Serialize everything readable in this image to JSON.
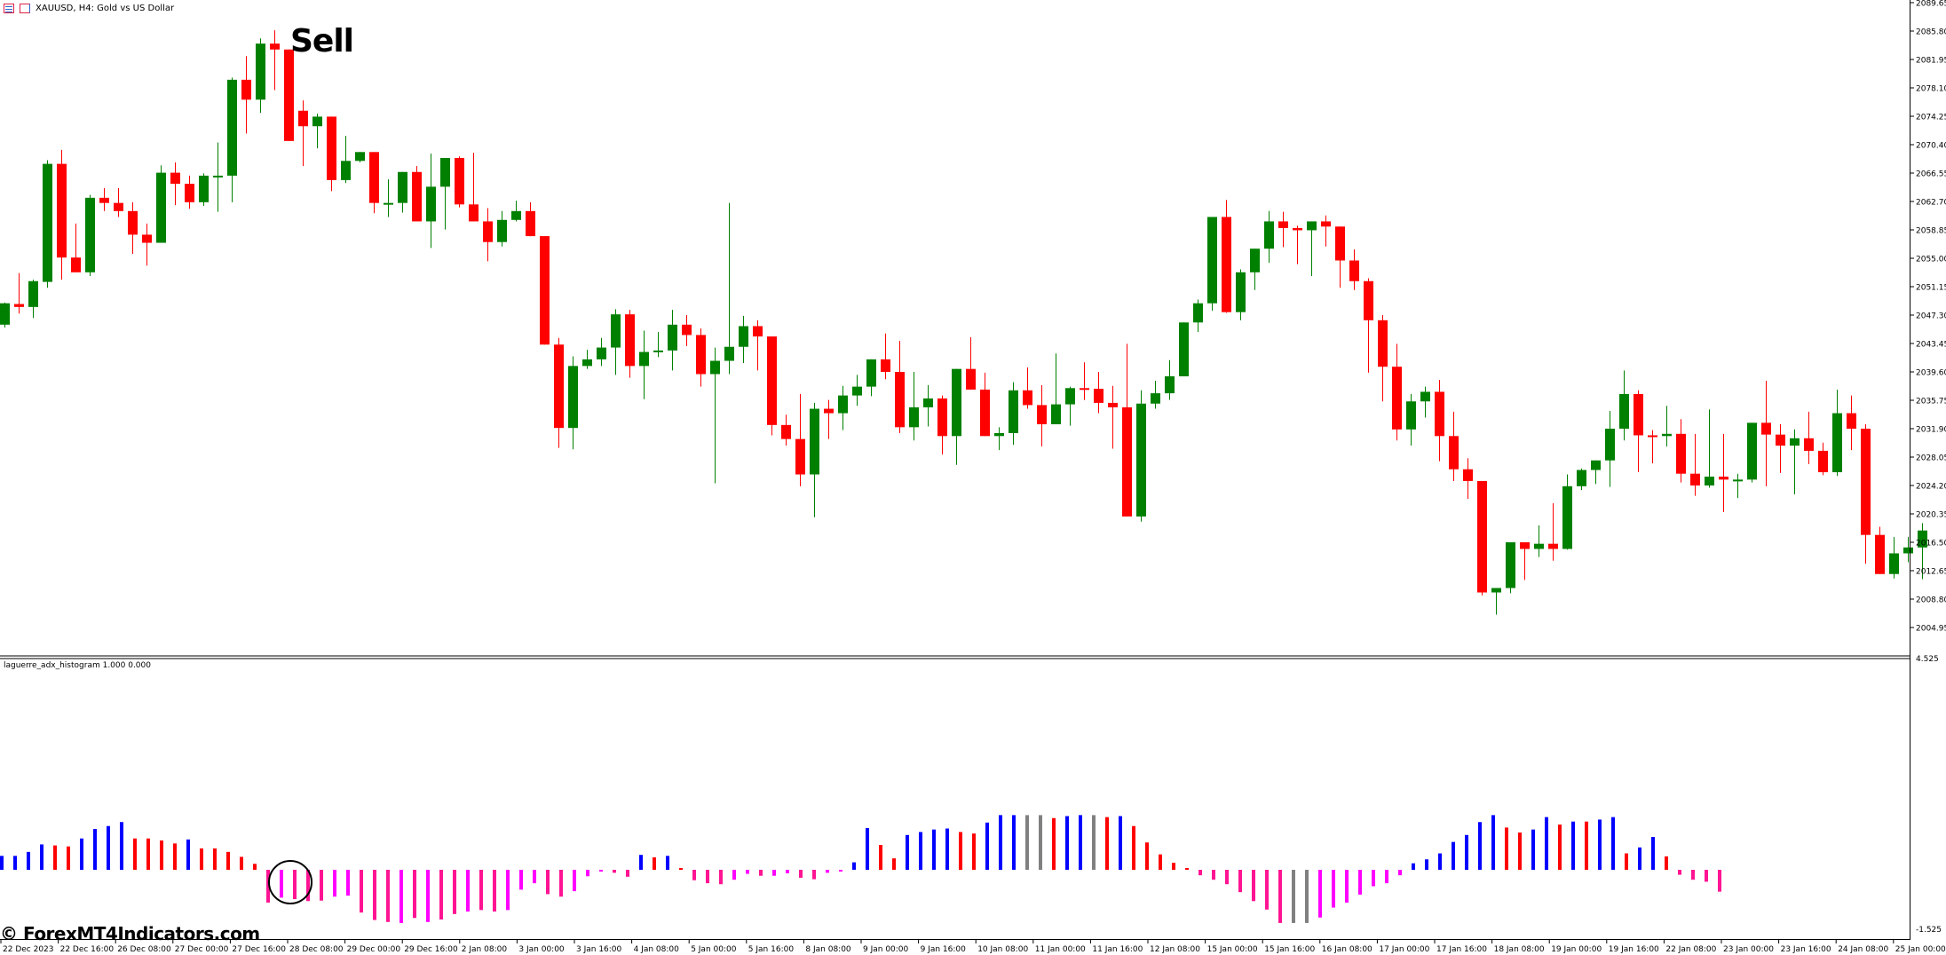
{
  "window": {
    "title": "XAUUSD, H4:  Gold vs US Dollar",
    "annotation": "Sell",
    "watermark": "© ForexMT4Indicators.com"
  },
  "indicator": {
    "label": "laguerre_adx_histogram 1.000 0.000",
    "ymax_label": "4.525",
    "ymin_label": "-1.525"
  },
  "colors": {
    "bull": "#008000",
    "bear": "#ff0000",
    "hist_blue": "#0000ff",
    "hist_red": "#ff0000",
    "hist_pink": "#ff1493",
    "hist_magenta": "#ff00ff",
    "hist_gray": "#808080"
  },
  "chart_data": [
    {
      "type": "candlestick",
      "title": "XAUUSD, H4: Gold vs US Dollar",
      "xlabel": "",
      "ylabel": "Price",
      "ylim": [
        2001.0,
        2090.0
      ],
      "y_ticks": [
        "2089.65",
        "2085.80",
        "2081.95",
        "2078.10",
        "2074.25",
        "2070.40",
        "2066.55",
        "2062.70",
        "2058.85",
        "2055.00",
        "2051.15",
        "2047.30",
        "2043.45",
        "2039.60",
        "2035.75",
        "2031.90",
        "2028.05",
        "2024.20",
        "2020.35",
        "2016.50",
        "2012.65",
        "2008.80",
        "2004.95"
      ],
      "x_ticks": [
        "22 Dec 2023",
        "22 Dec 16:00",
        "26 Dec 08:00",
        "27 Dec 00:00",
        "27 Dec 16:00",
        "28 Dec 08:00",
        "29 Dec 00:00",
        "29 Dec 16:00",
        "2 Jan 08:00",
        "3 Jan 00:00",
        "3 Jan 16:00",
        "4 Jan 08:00",
        "5 Jan 00:00",
        "5 Jan 16:00",
        "8 Jan 08:00",
        "9 Jan 00:00",
        "9 Jan 16:00",
        "10 Jan 08:00",
        "11 Jan 00:00",
        "11 Jan 16:00",
        "12 Jan 08:00",
        "15 Jan 00:00",
        "15 Jan 16:00",
        "16 Jan 08:00",
        "17 Jan 00:00",
        "17 Jan 16:00",
        "18 Jan 08:00",
        "19 Jan 00:00",
        "19 Jan 16:00",
        "22 Jan 08:00",
        "23 Jan 00:00",
        "23 Jan 16:00",
        "24 Jan 08:00",
        "25 Jan 00:00"
      ],
      "annotations": [
        "Sell"
      ],
      "grid": false,
      "ohlc": [
        [
          2046.0,
          2049.0,
          2045.6,
          2048.9
        ],
        [
          2048.8,
          2053.0,
          2047.5,
          2048.4
        ],
        [
          2048.4,
          2052.1,
          2046.9,
          2051.9
        ],
        [
          2051.8,
          2068.3,
          2051.0,
          2067.8
        ],
        [
          2067.8,
          2069.7,
          2052.1,
          2055.1
        ],
        [
          2055.1,
          2059.7,
          2053.4,
          2053.1
        ],
        [
          2053.1,
          2063.6,
          2052.6,
          2063.2
        ],
        [
          2063.2,
          2064.5,
          2061.4,
          2062.5
        ],
        [
          2062.5,
          2064.5,
          2060.6,
          2061.4
        ],
        [
          2061.4,
          2062.6,
          2055.6,
          2058.2
        ],
        [
          2058.2,
          2059.7,
          2054.0,
          2057.1
        ],
        [
          2057.1,
          2067.6,
          2057.1,
          2066.6
        ],
        [
          2066.6,
          2068.0,
          2062.2,
          2065.1
        ],
        [
          2065.1,
          2066.2,
          2061.7,
          2062.6
        ],
        [
          2062.6,
          2066.5,
          2062.1,
          2066.2
        ],
        [
          2066.2,
          2070.7,
          2061.3,
          2066.2
        ],
        [
          2066.2,
          2079.5,
          2062.6,
          2079.2
        ],
        [
          2079.2,
          2082.4,
          2071.9,
          2076.5
        ],
        [
          2076.5,
          2084.8,
          2074.7,
          2084.1
        ],
        [
          2084.1,
          2085.9,
          2077.8,
          2083.3
        ],
        [
          2083.3,
          2082.5,
          2072.2,
          2070.9
        ],
        [
          2075.0,
          2076.4,
          2067.5,
          2072.9
        ],
        [
          2072.9,
          2074.6,
          2069.9,
          2074.2
        ],
        [
          2074.2,
          2065.2,
          2064.1,
          2065.6
        ],
        [
          2065.6,
          2071.6,
          2065.2,
          2068.2
        ],
        [
          2068.2,
          2069.4,
          2068.0,
          2069.4
        ],
        [
          2069.4,
          2069.4,
          2061.1,
          2062.5
        ],
        [
          2062.5,
          2065.7,
          2060.6,
          2062.5
        ],
        [
          2062.5,
          2066.7,
          2061.2,
          2066.7
        ],
        [
          2066.7,
          2067.5,
          2061.4,
          2060.0
        ],
        [
          2060.0,
          2069.2,
          2056.4,
          2064.7
        ],
        [
          2064.7,
          2068.6,
          2058.9,
          2068.6
        ],
        [
          2068.6,
          2068.8,
          2061.9,
          2062.3
        ],
        [
          2062.3,
          2069.3,
          2060.1,
          2060.0
        ],
        [
          2060.0,
          2061.8,
          2054.6,
          2057.2
        ],
        [
          2057.2,
          2061.4,
          2056.6,
          2060.2
        ],
        [
          2060.2,
          2062.8,
          2060.0,
          2061.4
        ],
        [
          2061.4,
          2062.6,
          2060.8,
          2058.0
        ],
        [
          2058.0,
          2057.4,
          2047.2,
          2043.3
        ],
        [
          2043.3,
          2044.2,
          2029.3,
          2032.0
        ],
        [
          2032.0,
          2041.7,
          2029.1,
          2040.4
        ],
        [
          2040.4,
          2042.6,
          2040.0,
          2041.3
        ],
        [
          2041.3,
          2044.2,
          2040.4,
          2042.9
        ],
        [
          2042.9,
          2048.1,
          2039.2,
          2047.4
        ],
        [
          2047.4,
          2048.0,
          2038.8,
          2040.4
        ],
        [
          2040.4,
          2045.2,
          2035.9,
          2042.3
        ],
        [
          2042.3,
          2045.0,
          2041.6,
          2042.5
        ],
        [
          2042.5,
          2048.0,
          2039.8,
          2046.0
        ],
        [
          2046.0,
          2047.3,
          2043.1,
          2044.6
        ],
        [
          2044.6,
          2045.5,
          2037.6,
          2039.3
        ],
        [
          2039.3,
          2042.9,
          2024.5,
          2041.1
        ],
        [
          2041.1,
          2062.5,
          2039.3,
          2043.0
        ],
        [
          2043.0,
          2047.2,
          2040.8,
          2045.8
        ],
        [
          2045.8,
          2046.6,
          2039.8,
          2044.4
        ],
        [
          2044.4,
          2044.4,
          2031.0,
          2032.4
        ],
        [
          2032.4,
          2033.8,
          2029.6,
          2030.5
        ],
        [
          2030.5,
          2036.6,
          2024.1,
          2025.7
        ],
        [
          2025.7,
          2035.4,
          2019.9,
          2034.6
        ],
        [
          2034.6,
          2035.8,
          2030.5,
          2034.0
        ],
        [
          2034.0,
          2037.7,
          2031.7,
          2036.4
        ],
        [
          2036.4,
          2039.2,
          2035.0,
          2037.6
        ],
        [
          2037.6,
          2040.8,
          2036.3,
          2041.3
        ],
        [
          2041.3,
          2044.8,
          2038.6,
          2039.6
        ],
        [
          2039.6,
          2043.8,
          2031.3,
          2032.1
        ],
        [
          2032.1,
          2039.6,
          2030.3,
          2034.8
        ],
        [
          2034.8,
          2037.8,
          2032.2,
          2036.0
        ],
        [
          2036.0,
          2036.4,
          2028.4,
          2030.9
        ],
        [
          2030.9,
          2039.9,
          2027.0,
          2040.0
        ],
        [
          2040.0,
          2044.3,
          2037.3,
          2037.2
        ],
        [
          2037.2,
          2039.5,
          2031.4,
          2030.9
        ],
        [
          2030.9,
          2032.1,
          2029.0,
          2031.3
        ],
        [
          2031.3,
          2038.2,
          2029.7,
          2037.1
        ],
        [
          2037.1,
          2040.2,
          2034.6,
          2035.1
        ],
        [
          2035.1,
          2037.8,
          2029.5,
          2032.5
        ],
        [
          2032.5,
          2042.1,
          2032.5,
          2035.2
        ],
        [
          2035.2,
          2037.6,
          2032.3,
          2037.4
        ],
        [
          2037.4,
          2040.9,
          2035.8,
          2037.3
        ],
        [
          2037.3,
          2039.6,
          2034.0,
          2035.4
        ],
        [
          2035.4,
          2037.7,
          2029.2,
          2034.8
        ],
        [
          2034.8,
          2043.4,
          2020.8,
          2020.0
        ],
        [
          2020.0,
          2037.1,
          2019.3,
          2035.3
        ],
        [
          2035.3,
          2038.4,
          2034.6,
          2036.7
        ],
        [
          2036.7,
          2041.2,
          2035.8,
          2039.0
        ],
        [
          2039.0,
          2046.1,
          2039.0,
          2046.3
        ],
        [
          2046.3,
          2049.4,
          2045.0,
          2048.9
        ],
        [
          2048.9,
          2060.6,
          2047.9,
          2060.6
        ],
        [
          2060.6,
          2062.9,
          2047.6,
          2047.7
        ],
        [
          2047.7,
          2053.5,
          2046.6,
          2053.1
        ],
        [
          2053.1,
          2056.2,
          2050.7,
          2056.3
        ],
        [
          2056.3,
          2061.4,
          2054.4,
          2060.0
        ],
        [
          2060.0,
          2061.3,
          2056.5,
          2059.1
        ],
        [
          2059.1,
          2059.4,
          2054.2,
          2058.8
        ],
        [
          2058.8,
          2060.0,
          2052.6,
          2060.0
        ],
        [
          2060.0,
          2060.8,
          2056.6,
          2059.3
        ],
        [
          2059.3,
          2059.1,
          2051.0,
          2054.7
        ],
        [
          2054.7,
          2056.2,
          2050.7,
          2051.9
        ],
        [
          2051.9,
          2052.3,
          2039.5,
          2046.6
        ],
        [
          2046.6,
          2047.3,
          2035.6,
          2040.3
        ],
        [
          2040.3,
          2043.4,
          2030.3,
          2031.8
        ],
        [
          2031.8,
          2036.6,
          2029.6,
          2035.6
        ],
        [
          2035.6,
          2037.6,
          2033.4,
          2036.9
        ],
        [
          2036.9,
          2038.5,
          2027.5,
          2030.9
        ],
        [
          2030.9,
          2034.2,
          2024.8,
          2026.4
        ],
        [
          2026.4,
          2027.9,
          2022.4,
          2024.8
        ],
        [
          2024.8,
          2024.2,
          2009.3,
          2009.7
        ],
        [
          2009.7,
          2009.9,
          2006.7,
          2010.3
        ],
        [
          2010.3,
          2016.5,
          2009.6,
          2016.5
        ],
        [
          2016.5,
          2015.5,
          2011.4,
          2015.6
        ],
        [
          2015.6,
          2018.8,
          2014.5,
          2016.3
        ],
        [
          2016.3,
          2021.8,
          2014.0,
          2015.6
        ],
        [
          2015.6,
          2025.7,
          2015.5,
          2024.1
        ],
        [
          2024.1,
          2026.5,
          2023.6,
          2026.3
        ],
        [
          2026.3,
          2026.7,
          2024.4,
          2027.6
        ],
        [
          2027.6,
          2034.3,
          2024.0,
          2031.9
        ],
        [
          2031.9,
          2039.8,
          2030.3,
          2036.6
        ],
        [
          2036.6,
          2037.1,
          2026.0,
          2031.0
        ],
        [
          2031.0,
          2031.7,
          2027.2,
          2030.9
        ],
        [
          2030.9,
          2035.0,
          2029.5,
          2031.2
        ],
        [
          2031.2,
          2033.2,
          2024.6,
          2025.8
        ],
        [
          2025.8,
          2031.2,
          2022.8,
          2024.2
        ],
        [
          2024.2,
          2034.5,
          2023.9,
          2025.4
        ],
        [
          2025.4,
          2031.2,
          2020.6,
          2025.0
        ],
        [
          2025.0,
          2025.8,
          2022.5,
          2025.0
        ],
        [
          2025.0,
          2029.8,
          2024.6,
          2032.7
        ],
        [
          2032.7,
          2038.4,
          2024.1,
          2031.1
        ],
        [
          2031.1,
          2032.5,
          2025.9,
          2029.6
        ],
        [
          2029.6,
          2031.8,
          2023.0,
          2030.6
        ],
        [
          2030.6,
          2034.2,
          2027.1,
          2028.9
        ],
        [
          2028.9,
          2030.0,
          2025.6,
          2026.0
        ],
        [
          2026.0,
          2037.2,
          2025.5,
          2034.0
        ],
        [
          2034.0,
          2036.4,
          2029.0,
          2031.9
        ],
        [
          2031.9,
          2032.5,
          2013.6,
          2017.5
        ],
        [
          2017.5,
          2018.6,
          2012.5,
          2012.2
        ],
        [
          2012.2,
          2017.2,
          2011.6,
          2015.0
        ],
        [
          2015.0,
          2017.2,
          2013.8,
          2015.8
        ],
        [
          2015.8,
          2019.1,
          2011.5,
          2018.1
        ]
      ]
    },
    {
      "type": "bar",
      "title": "laguerre_adx_histogram 1.000 0.000",
      "ylim": [
        -1.525,
        4.525
      ],
      "y_ticks": [
        "4.525",
        "-1.525"
      ],
      "series": [
        {
          "name": "laguerre_adx_histogram",
          "values": [
            0.28,
            0.28,
            0.36,
            0.51,
            0.49,
            0.47,
            0.63,
            0.82,
            0.88,
            0.96,
            0.63,
            0.63,
            0.59,
            0.53,
            0.61,
            0.43,
            0.43,
            0.36,
            0.26,
            0.12,
            -0.66,
            -0.56,
            -0.59,
            -0.63,
            -0.62,
            -0.54,
            -0.52,
            -0.86,
            -1.01,
            -1.05,
            -1.07,
            -0.97,
            -1.05,
            -1.0,
            -0.89,
            -0.84,
            -0.81,
            -0.84,
            -0.81,
            -0.4,
            -0.27,
            -0.49,
            -0.54,
            -0.43,
            -0.13,
            -0.02,
            -0.06,
            -0.14,
            0.3,
            0.25,
            0.28,
            0.02,
            -0.21,
            -0.27,
            -0.29,
            -0.2,
            -0.08,
            -0.12,
            -0.12,
            -0.07,
            -0.16,
            -0.19,
            -0.06,
            -0.02,
            0.15,
            0.84,
            0.5,
            0.23,
            0.7,
            0.76,
            0.81,
            0.83,
            0.76,
            0.73,
            0.95,
            1.1,
            1.1,
            1.1,
            1.1,
            1.04,
            1.08,
            1.1,
            1.1,
            1.06,
            1.08,
            0.88,
            0.55,
            0.31,
            0.14,
            0.02,
            -0.11,
            -0.2,
            -0.29,
            -0.45,
            -0.63,
            -0.8,
            -1.07,
            -1.07,
            -1.07,
            -0.96,
            -0.76,
            -0.66,
            -0.5,
            -0.33,
            -0.27,
            -0.11,
            0.13,
            0.21,
            0.33,
            0.56,
            0.7,
            0.96,
            1.1,
            0.85,
            0.75,
            0.81,
            1.06,
            0.91,
            0.97,
            0.97,
            1.01,
            1.06,
            0.33,
            0.45,
            0.66,
            0.27,
            -0.1,
            -0.2,
            -0.24,
            -0.44
          ],
          "colors": [
            "blue",
            "blue",
            "blue",
            "blue",
            "red",
            "red",
            "blue",
            "blue",
            "blue",
            "blue",
            "red",
            "red",
            "red",
            "red",
            "blue",
            "red",
            "red",
            "red",
            "red",
            "red",
            "pink",
            "magenta",
            "pink",
            "pink",
            "pink",
            "magenta",
            "magenta",
            "pink",
            "pink",
            "pink",
            "magenta",
            "pink",
            "magenta",
            "pink",
            "pink",
            "magenta",
            "pink",
            "pink",
            "magenta",
            "magenta",
            "magenta",
            "pink",
            "pink",
            "magenta",
            "magenta",
            "magenta",
            "pink",
            "pink",
            "blue",
            "red",
            "blue",
            "red",
            "pink",
            "pink",
            "pink",
            "magenta",
            "magenta",
            "pink",
            "magenta",
            "magenta",
            "pink",
            "pink",
            "magenta",
            "magenta",
            "blue",
            "blue",
            "red",
            "red",
            "blue",
            "blue",
            "blue",
            "blue",
            "red",
            "red",
            "blue",
            "blue",
            "blue",
            "gray",
            "gray",
            "red",
            "blue",
            "blue",
            "gray",
            "red",
            "blue",
            "red",
            "red",
            "red",
            "red",
            "red",
            "pink",
            "pink",
            "pink",
            "pink",
            "pink",
            "pink",
            "pink",
            "gray",
            "gray",
            "magenta",
            "magenta",
            "magenta",
            "magenta",
            "magenta",
            "magenta",
            "magenta",
            "blue",
            "blue",
            "blue",
            "blue",
            "blue",
            "blue",
            "blue",
            "red",
            "red",
            "blue",
            "blue",
            "red",
            "blue",
            "red",
            "blue",
            "blue",
            "red",
            "blue",
            "blue",
            "red",
            "pink",
            "pink",
            "pink",
            "pink"
          ]
        }
      ]
    }
  ]
}
